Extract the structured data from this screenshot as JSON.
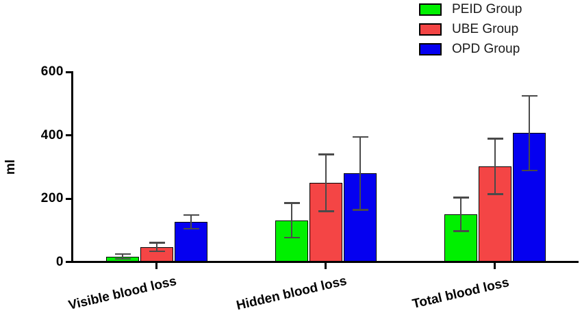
{
  "chart_data": {
    "type": "bar",
    "title": "",
    "xlabel": "",
    "ylabel": "ml",
    "categories": [
      "Visible blood loss",
      "Hidden blood loss",
      "Total blood loss"
    ],
    "series": [
      {
        "name": "PEID Group",
        "color": "#00F000",
        "values": [
          18,
          132,
          151
        ],
        "errors": [
          8,
          55,
          53
        ]
      },
      {
        "name": "UBE Group",
        "color": "#F44545",
        "values": [
          48,
          250,
          302
        ],
        "errors": [
          14,
          90,
          88
        ]
      },
      {
        "name": "OPD Group",
        "color": "#0500F0",
        "values": [
          127,
          280,
          407
        ],
        "errors": [
          22,
          115,
          118
        ]
      }
    ],
    "ylim": [
      0,
      600
    ],
    "yticks": [
      0,
      200,
      400,
      600
    ],
    "grid": false,
    "legend_position": "top-right",
    "error_bars": "symmetric, capped, both directions",
    "error_bar_color": "#4a4a4a",
    "axis_color": "#000000",
    "background_color": "#ffffff"
  }
}
